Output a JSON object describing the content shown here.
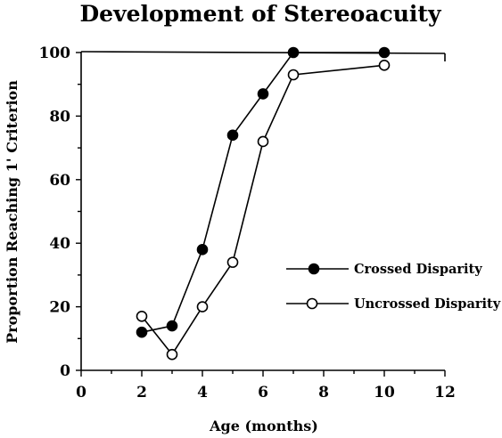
{
  "chart_data": {
    "type": "line",
    "title": "Development of Stereoacuity",
    "xlabel": "Age (months)",
    "ylabel": "Proportion Reaching 1' Criterion",
    "xlim": [
      0,
      12
    ],
    "ylim": [
      0,
      100
    ],
    "x_ticks": [
      "0",
      "2",
      "4",
      "6",
      "8",
      "10",
      "12"
    ],
    "y_ticks": [
      "0",
      "20",
      "40",
      "60",
      "80",
      "100"
    ],
    "grid": false,
    "legend_position": "right",
    "series": [
      {
        "name": "Crossed Disparity",
        "marker": "filled-circle",
        "x": [
          2,
          3,
          4,
          5,
          6,
          7,
          10
        ],
        "values": [
          12,
          14,
          38,
          74,
          87,
          100,
          100
        ]
      },
      {
        "name": "Uncrossed Disparity",
        "marker": "open-circle",
        "x": [
          2,
          3,
          4,
          5,
          6,
          7,
          10
        ],
        "values": [
          17,
          5,
          20,
          34,
          72,
          93,
          96
        ]
      }
    ]
  }
}
